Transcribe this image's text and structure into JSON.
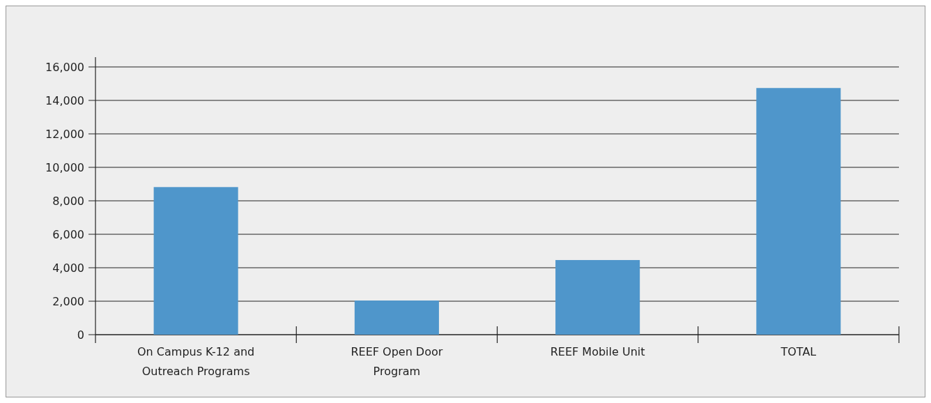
{
  "chart_data": {
    "type": "bar",
    "categories": [
      "On Campus K-12 and Outreach Programs",
      "REEF Open Door Program",
      "REEF Mobile Unit",
      "TOTAL"
    ],
    "values": [
      8820,
      2040,
      4460,
      14740
    ],
    "color": "#4f96cb",
    "ylim": [
      0,
      16000
    ],
    "yticks": [
      {
        "value": 0,
        "label": "0"
      },
      {
        "value": 2000,
        "label": "2,000"
      },
      {
        "value": 4000,
        "label": "4,000"
      },
      {
        "value": 6000,
        "label": "6,000"
      },
      {
        "value": 8000,
        "label": "8,000"
      },
      {
        "value": 10000,
        "label": "10,000"
      },
      {
        "value": 12000,
        "label": "12,000"
      },
      {
        "value": 14000,
        "label": "14,000"
      },
      {
        "value": 16000,
        "label": "16,000"
      }
    ],
    "grid": "y"
  }
}
